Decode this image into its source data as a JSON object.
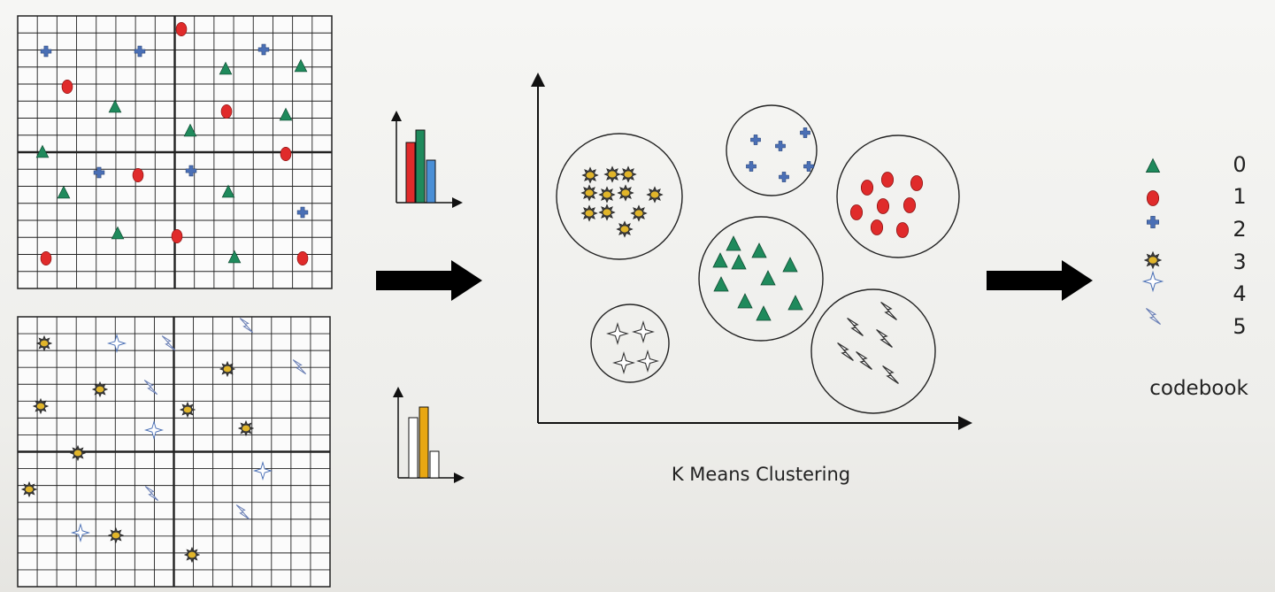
{
  "diagram": {
    "clustering_caption": "K Means Clustering",
    "codebook_caption": "codebook",
    "codebook_entries": [
      {
        "index": "0",
        "icon": "triangle-icon",
        "color": "#1f8a5c"
      },
      {
        "index": "1",
        "icon": "ellipse-icon",
        "color": "#e02b2b"
      },
      {
        "index": "2",
        "icon": "cross-icon",
        "color": "#4a6fb5"
      },
      {
        "index": "3",
        "icon": "spiky-blob-icon",
        "color": "#e1b52a"
      },
      {
        "index": "4",
        "icon": "four-point-star-icon",
        "color": "#5b82c9"
      },
      {
        "index": "5",
        "icon": "lightning-icon",
        "color": "#7a8fc9"
      }
    ],
    "histogram_top_colors": [
      "#e02b2b",
      "#1f8a5c",
      "#4a8fd6"
    ],
    "histogram_bottom_colors": [
      "#ffffff",
      "#e8a712",
      "#ffffff"
    ]
  }
}
